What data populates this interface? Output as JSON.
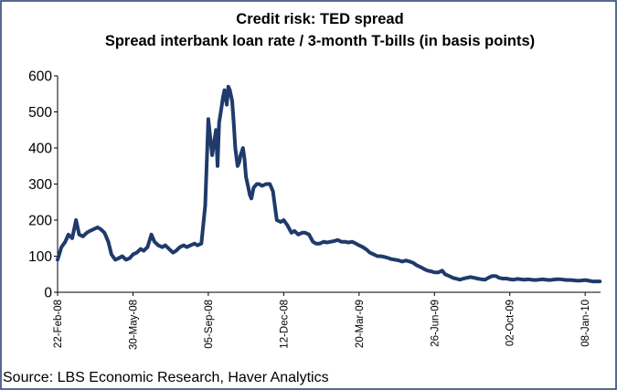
{
  "chart_data": {
    "type": "line",
    "title": "Credit risk: TED spread",
    "subtitle": "Spread interbank loan rate / 3-month T-bills (in basis points)",
    "source": "Source: LBS Economic Research, Haver Analytics",
    "xlabel": "",
    "ylabel": "",
    "ylim": [
      0,
      600
    ],
    "yticks": [
      "0",
      "100",
      "200",
      "300",
      "400",
      "500",
      "600"
    ],
    "xticks": [
      "22-Feb-08",
      "30-May-08",
      "05-Sep-08",
      "12-Dec-08",
      "20-Mar-09",
      "26-Jun-09",
      "02-Oct-09",
      "08-Jan-10"
    ],
    "grid": false,
    "line_color": "#1f3a6b",
    "border_color": "#1f3a6b",
    "series": [
      {
        "x": [
          "2008-02-22",
          "2008-02-27",
          "2008-03-03",
          "2008-03-07",
          "2008-03-12",
          "2008-03-17",
          "2008-03-21",
          "2008-03-26",
          "2008-03-31",
          "2008-04-04",
          "2008-04-09",
          "2008-04-14",
          "2008-04-18",
          "2008-04-23",
          "2008-04-28",
          "2008-05-02",
          "2008-05-07",
          "2008-05-12",
          "2008-05-16",
          "2008-05-21",
          "2008-05-26",
          "2008-05-30",
          "2008-06-04",
          "2008-06-09",
          "2008-06-13",
          "2008-06-18",
          "2008-06-23",
          "2008-06-27",
          "2008-07-02",
          "2008-07-07",
          "2008-07-11",
          "2008-07-16",
          "2008-07-21",
          "2008-07-25",
          "2008-07-30",
          "2008-08-04",
          "2008-08-08",
          "2008-08-13",
          "2008-08-18",
          "2008-08-22",
          "2008-08-27",
          "2008-09-01",
          "2008-09-05",
          "2008-09-10",
          "2008-09-15",
          "2008-09-17",
          "2008-09-19",
          "2008-09-22",
          "2008-09-24",
          "2008-09-26",
          "2008-09-29",
          "2008-10-01",
          "2008-10-03",
          "2008-10-06",
          "2008-10-08",
          "2008-10-10",
          "2008-10-13",
          "2008-10-15",
          "2008-10-17",
          "2008-10-20",
          "2008-10-22",
          "2008-10-24",
          "2008-10-27",
          "2008-10-29",
          "2008-10-31",
          "2008-11-03",
          "2008-11-05",
          "2008-11-07",
          "2008-11-10",
          "2008-11-14",
          "2008-11-19",
          "2008-11-24",
          "2008-11-28",
          "2008-12-03",
          "2008-12-08",
          "2008-12-12",
          "2008-12-17",
          "2008-12-22",
          "2008-12-26",
          "2008-12-31",
          "2009-01-05",
          "2009-01-09",
          "2009-01-14",
          "2009-01-19",
          "2009-01-23",
          "2009-01-28",
          "2009-02-02",
          "2009-02-06",
          "2009-02-11",
          "2009-02-16",
          "2009-02-20",
          "2009-02-25",
          "2009-03-02",
          "2009-03-06",
          "2009-03-11",
          "2009-03-16",
          "2009-03-20",
          "2009-03-25",
          "2009-03-30",
          "2009-04-03",
          "2009-04-08",
          "2009-04-13",
          "2009-04-17",
          "2009-04-22",
          "2009-04-27",
          "2009-05-01",
          "2009-05-06",
          "2009-05-11",
          "2009-05-15",
          "2009-05-20",
          "2009-05-25",
          "2009-05-29",
          "2009-06-03",
          "2009-06-08",
          "2009-06-12",
          "2009-06-17",
          "2009-06-22",
          "2009-06-26",
          "2009-07-01",
          "2009-07-06",
          "2009-07-10",
          "2009-07-15",
          "2009-07-20",
          "2009-07-24",
          "2009-07-29",
          "2009-08-03",
          "2009-08-07",
          "2009-08-12",
          "2009-08-17",
          "2009-08-21",
          "2009-08-26",
          "2009-08-31",
          "2009-09-04",
          "2009-09-09",
          "2009-09-14",
          "2009-09-18",
          "2009-09-23",
          "2009-09-28",
          "2009-10-02",
          "2009-10-07",
          "2009-10-12",
          "2009-10-16",
          "2009-10-21",
          "2009-10-26",
          "2009-10-30",
          "2009-11-04",
          "2009-11-09",
          "2009-11-13",
          "2009-11-18",
          "2009-11-23",
          "2009-11-27",
          "2009-12-02",
          "2009-12-07",
          "2009-12-11",
          "2009-12-16",
          "2009-12-21",
          "2009-12-25",
          "2009-12-30",
          "2010-01-04",
          "2010-01-08",
          "2010-01-13",
          "2010-01-18",
          "2010-01-22",
          "2010-01-27"
        ],
        "y": [
          90,
          125,
          140,
          160,
          150,
          200,
          160,
          155,
          165,
          170,
          175,
          180,
          175,
          165,
          140,
          105,
          90,
          95,
          100,
          90,
          95,
          105,
          110,
          120,
          115,
          125,
          160,
          140,
          130,
          125,
          130,
          120,
          110,
          115,
          125,
          130,
          125,
          130,
          135,
          130,
          135,
          240,
          480,
          380,
          450,
          350,
          470,
          510,
          540,
          560,
          520,
          570,
          560,
          530,
          470,
          400,
          350,
          360,
          380,
          400,
          370,
          320,
          290,
          270,
          260,
          290,
          295,
          300,
          300,
          295,
          300,
          300,
          280,
          200,
          195,
          200,
          185,
          165,
          170,
          160,
          165,
          165,
          160,
          140,
          135,
          135,
          140,
          138,
          140,
          142,
          145,
          140,
          140,
          138,
          140,
          135,
          130,
          125,
          118,
          110,
          105,
          100,
          100,
          98,
          95,
          92,
          90,
          88,
          85,
          88,
          85,
          82,
          75,
          70,
          65,
          60,
          58,
          55,
          55,
          60,
          50,
          45,
          40,
          38,
          35,
          38,
          40,
          42,
          40,
          38,
          36,
          35,
          40,
          45,
          45,
          40,
          38,
          38,
          36,
          35,
          37,
          36,
          35,
          36,
          35,
          34,
          35,
          36,
          35,
          34,
          35,
          36,
          36,
          35,
          34,
          34,
          33,
          32,
          33,
          34,
          32,
          30,
          30,
          30
        ]
      }
    ]
  }
}
